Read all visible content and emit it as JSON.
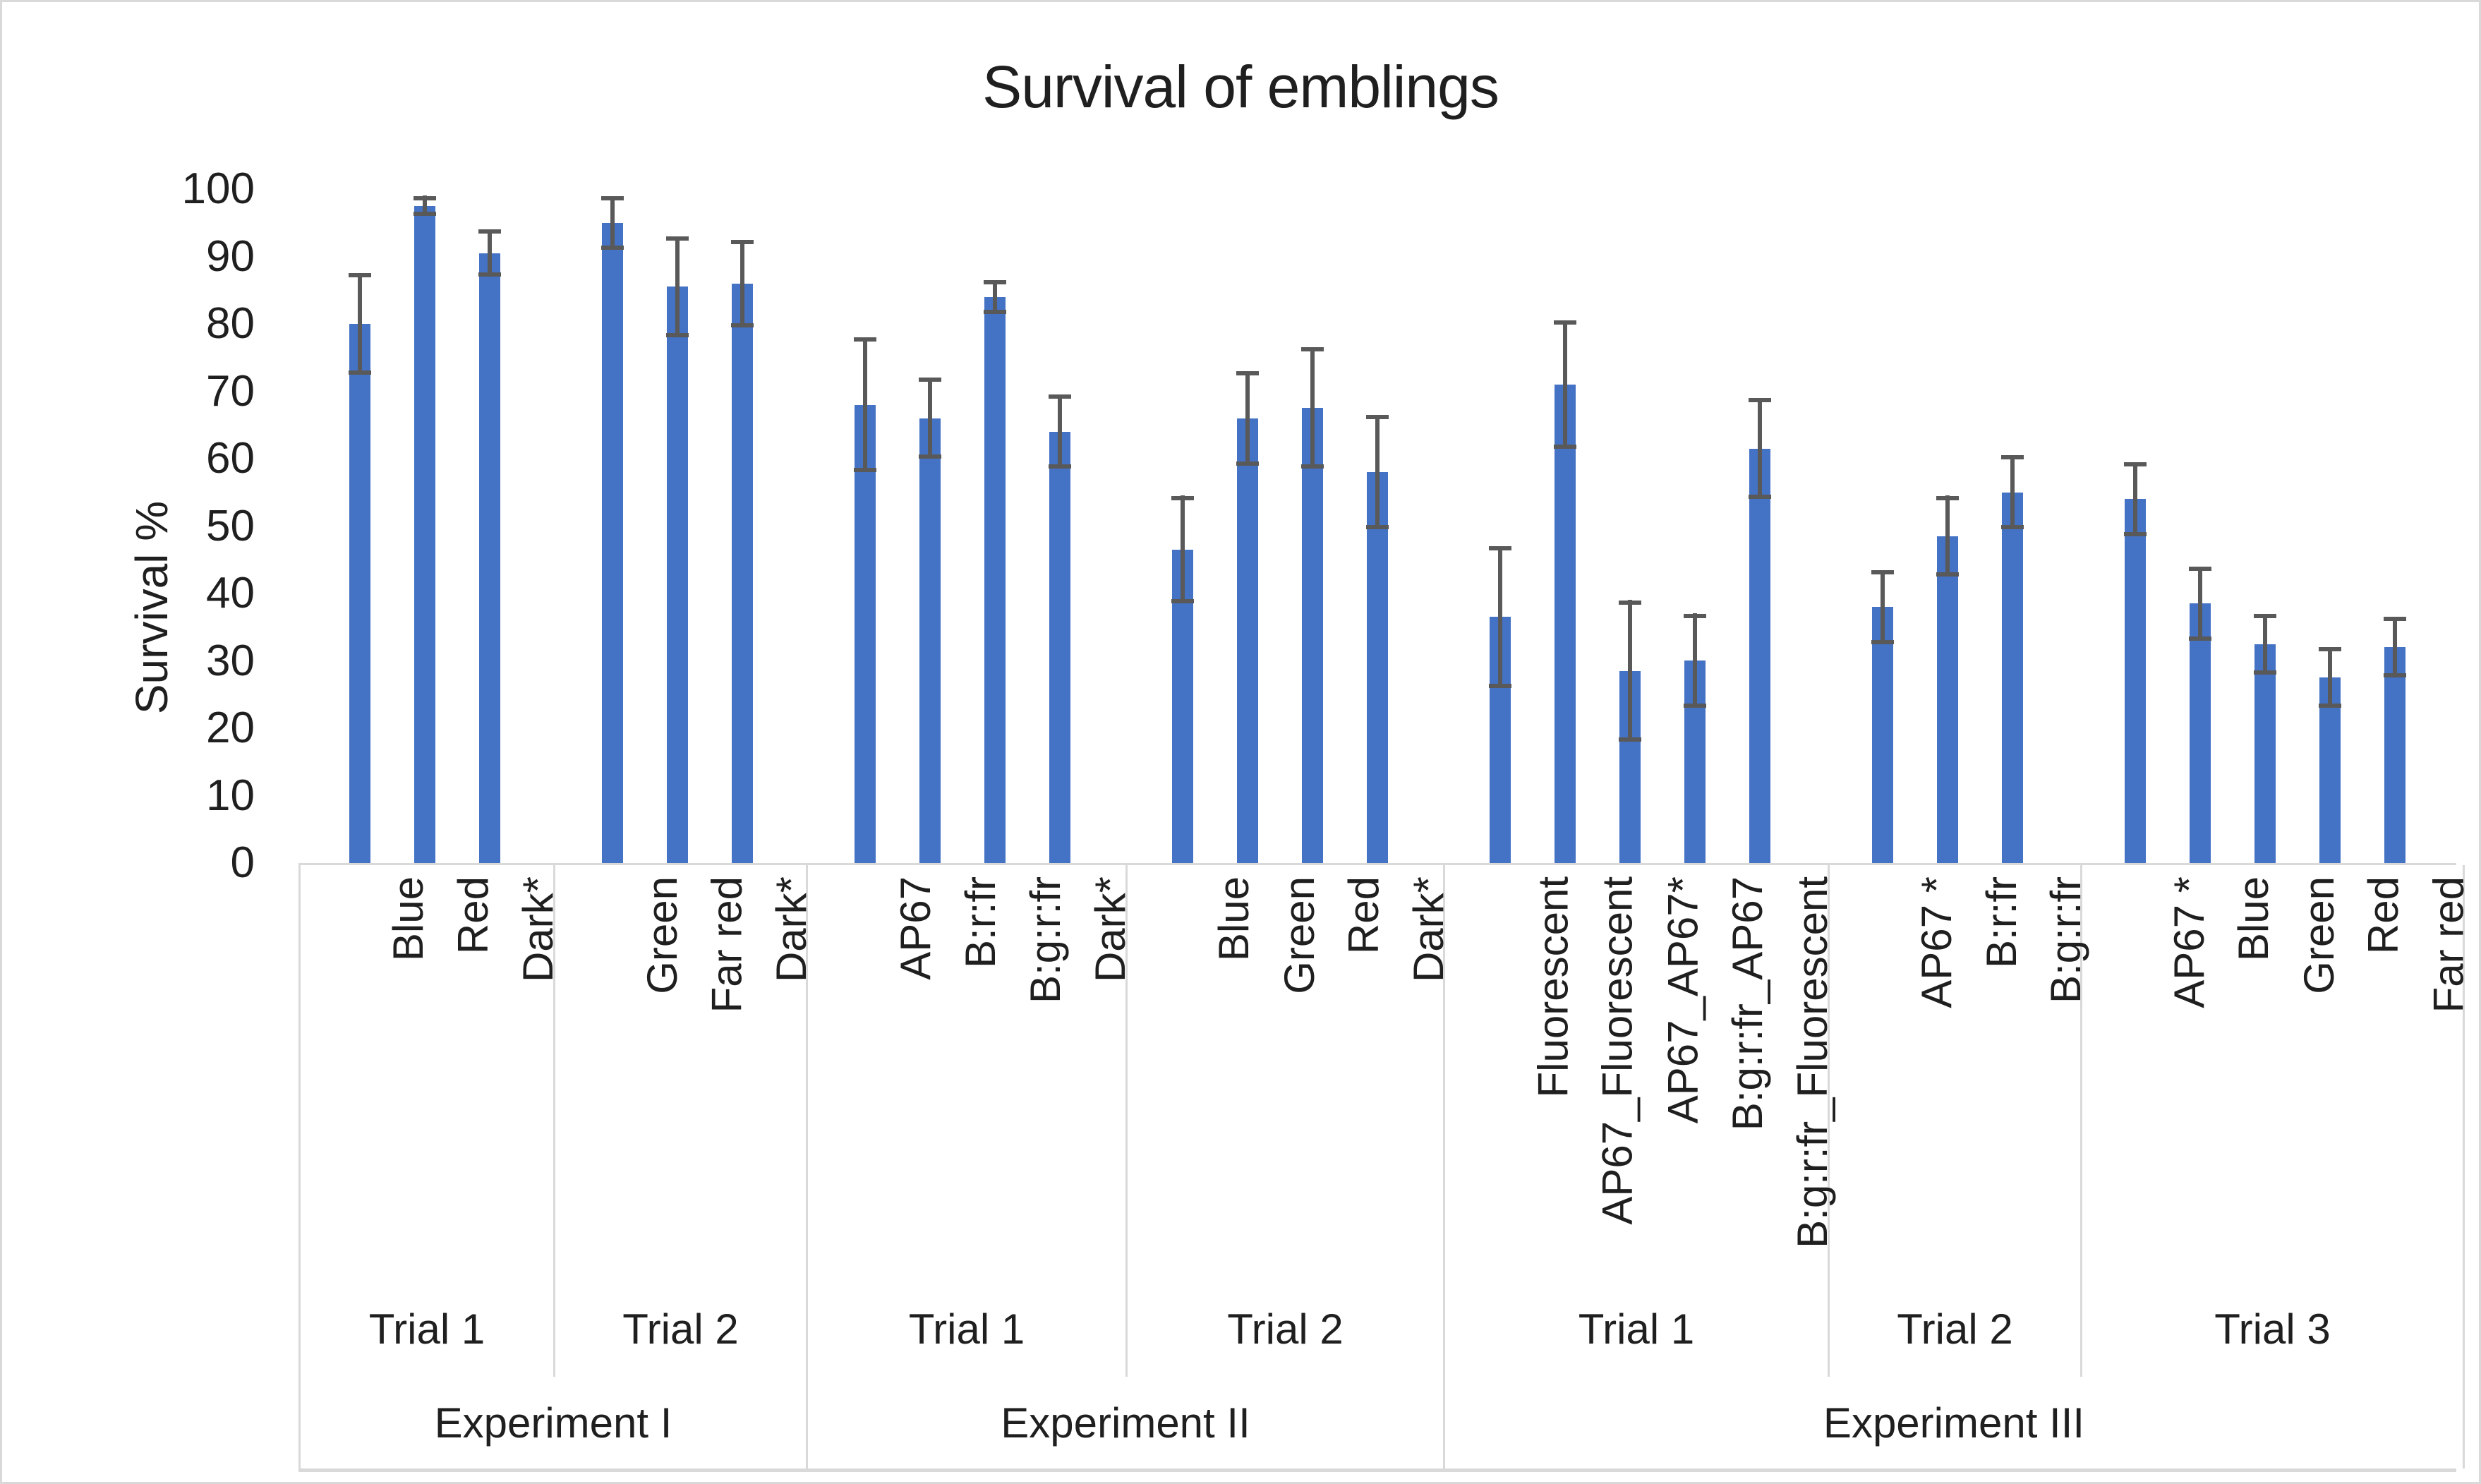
{
  "chart_data": {
    "type": "bar",
    "title": "Survival of emblings",
    "xlabel": "",
    "ylabel": "Survival %",
    "ylim": [
      0,
      100
    ],
    "yticks": [
      100,
      90,
      80,
      70,
      60,
      50,
      40,
      30,
      20,
      10,
      0
    ],
    "grid": false,
    "legend": "none",
    "bar_color": "#4472C4",
    "error_bar_color": "#595959",
    "separator_color": "#D9D9D9",
    "experiments": [
      {
        "label": "Experiment I",
        "trials": [
          {
            "label": "Trial 1",
            "bars": [
              {
                "label": "Blue",
                "value": 80,
                "error": 7.5
              },
              {
                "label": "Red",
                "value": 97.5,
                "error": 1.5
              },
              {
                "label": "Dark*",
                "value": 90.5,
                "error": 3.5
              }
            ]
          },
          {
            "label": "Trial 2",
            "bars": [
              {
                "label": "Green",
                "value": 95,
                "error": 4
              },
              {
                "label": "Far red",
                "value": 85.5,
                "error": 7.5
              },
              {
                "label": "Dark*",
                "value": 86,
                "error": 6.5
              }
            ]
          }
        ]
      },
      {
        "label": "Experiment II",
        "trials": [
          {
            "label": "Trial 1",
            "bars": [
              {
                "label": "AP67",
                "value": 68,
                "error": 10
              },
              {
                "label": "B:r:fr",
                "value": 66,
                "error": 6
              },
              {
                "label": "B:g:r:fr",
                "value": 84,
                "error": 2.5
              },
              {
                "label": "Dark*",
                "value": 64,
                "error": 5.5
              }
            ]
          },
          {
            "label": "Trial 2",
            "bars": [
              {
                "label": "Blue",
                "value": 46.5,
                "error": 8
              },
              {
                "label": "Green",
                "value": 66,
                "error": 7
              },
              {
                "label": "Red",
                "value": 67.5,
                "error": 9
              },
              {
                "label": "Dark*",
                "value": 58,
                "error": 8.5
              }
            ]
          }
        ]
      },
      {
        "label": "Experiment III",
        "trials": [
          {
            "label": "Trial 1",
            "bars": [
              {
                "label": "Fluorescent",
                "value": 36.5,
                "error": 10.5
              },
              {
                "label": "AP67_Fluorescent",
                "value": 71,
                "error": 9.5
              },
              {
                "label": "AP67_AP67*",
                "value": 28.5,
                "error": 10.5
              },
              {
                "label": "B:g:r:fr_AP67",
                "value": 30,
                "error": 7
              },
              {
                "label": "B:g:r:fr_Fluorescent",
                "value": 61.5,
                "error": 7.5
              }
            ]
          },
          {
            "label": "Trial 2",
            "bars": [
              {
                "label": "AP67 *",
                "value": 38,
                "error": 5.5
              },
              {
                "label": "B:r:fr",
                "value": 48.5,
                "error": 6
              },
              {
                "label": "B:g:r:fr",
                "value": 55,
                "error": 5.5
              }
            ]
          },
          {
            "label": "Trial 3",
            "bars": [
              {
                "label": "AP67 *",
                "value": 54,
                "error": 5.5
              },
              {
                "label": "Blue",
                "value": 38.5,
                "error": 5.5
              },
              {
                "label": "Green",
                "value": 32.5,
                "error": 4.5
              },
              {
                "label": "Red",
                "value": 27.5,
                "error": 4.5
              },
              {
                "label": "Far red",
                "value": 32,
                "error": 4.5
              }
            ]
          }
        ]
      }
    ]
  }
}
